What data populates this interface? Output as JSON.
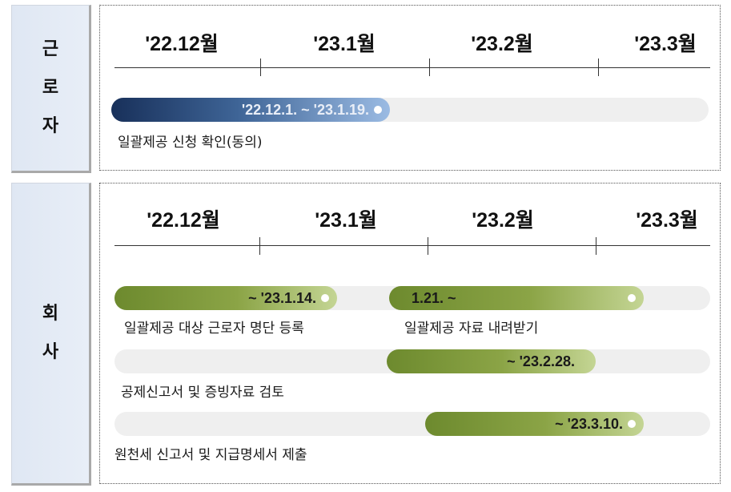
{
  "worker": {
    "side_label": [
      "근",
      "로",
      "자"
    ],
    "months": [
      "'22.12월",
      "'23.1월",
      "'23.2월",
      "'23.3월"
    ],
    "tasks": [
      {
        "bar_label": "'22.12.1. ~ '23.1.19.",
        "description": "일괄제공 신청 확인(동의)",
        "color": "#3e6496"
      }
    ]
  },
  "company": {
    "side_label": [
      "회",
      "사"
    ],
    "months": [
      "'22.12월",
      "'23.1월",
      "'23.2월",
      "'23.3월"
    ],
    "tasks": [
      {
        "bar_label": "~ '23.1.14.",
        "description": "일괄제공 대상 근로자 명단 등록",
        "color": "#8ba446"
      },
      {
        "bar_label": "1.21. ~",
        "description": "일괄제공 자료 내려받기",
        "color": "#8ba446"
      },
      {
        "bar_label": "~ '23.2.28.",
        "description": "공제신고서 및 증빙자료 검토",
        "color": "#8ba446"
      },
      {
        "bar_label": "~ '23.3.10.",
        "description": "원천세 신고서 및 지급명세서 제출",
        "color": "#8ba446"
      }
    ]
  }
}
